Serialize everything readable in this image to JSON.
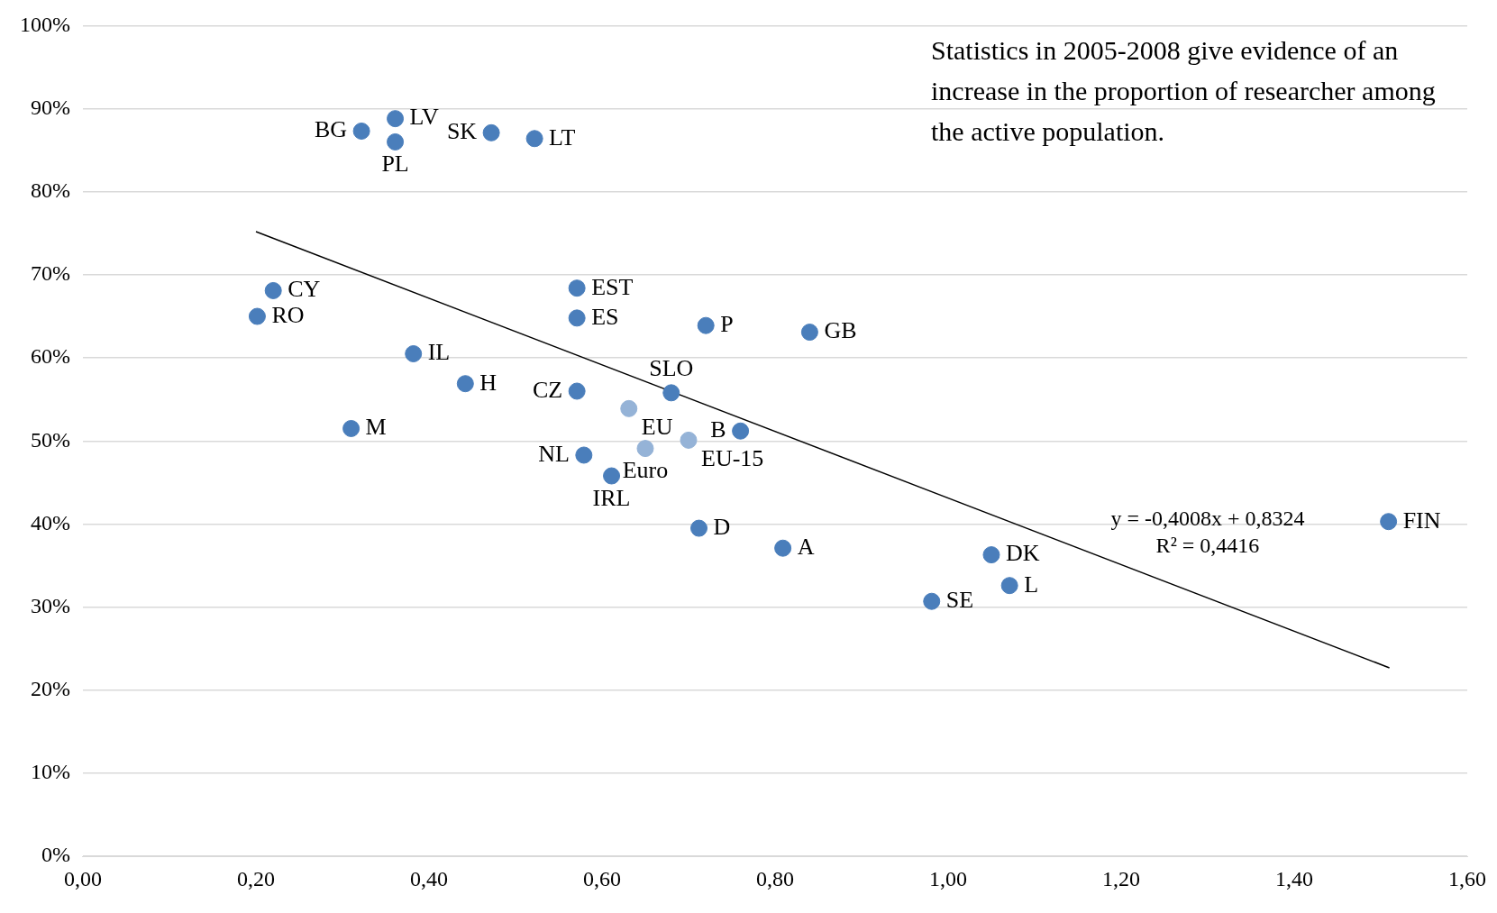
{
  "chart_data": {
    "type": "scatter",
    "series": [
      {
        "color": "#4a7ebb",
        "marker": "circle",
        "x": [
          0.322,
          0.361,
          0.361,
          0.472,
          0.522,
          0.22,
          0.2015,
          0.382,
          0.442,
          0.31,
          0.571,
          0.571,
          0.72,
          0.84,
          0.571,
          0.68,
          0.76,
          0.579,
          0.611,
          0.712,
          0.809,
          1.05,
          1.071,
          0.981,
          1.509
        ],
        "values": [
          87.3,
          88.8,
          86.0,
          87.1,
          86.4,
          68.1,
          65.0,
          60.5,
          56.9,
          51.5,
          68.4,
          64.8,
          63.9,
          63.1,
          56.0,
          55.8,
          51.2,
          48.3,
          45.8,
          39.5,
          37.1,
          36.3,
          32.6,
          30.7,
          40.3
        ]
      },
      {
        "color": "#95b3d7",
        "marker": "circle",
        "x": [
          0.631,
          0.65,
          0.7
        ],
        "values": [
          53.9,
          49.1,
          50.1
        ]
      },
      {
        "type": "line",
        "color": "#000000",
        "marker": "none",
        "x": [
          0.2,
          1.51
        ],
        "values": [
          75.2,
          22.7
        ]
      }
    ],
    "xlim": [
      0,
      1.6
    ],
    "xticks": [
      {
        "value": 0,
        "label": "0,00"
      },
      {
        "value": 0.2,
        "label": "0,20"
      },
      {
        "value": 0.4,
        "label": "0,40"
      },
      {
        "value": 0.6,
        "label": "0,60"
      },
      {
        "value": 0.8,
        "label": "0,80"
      },
      {
        "value": 1.0,
        "label": "1,00"
      },
      {
        "value": 1.2,
        "label": "1,20"
      },
      {
        "value": 1.4,
        "label": "1,40"
      },
      {
        "value": 1.6,
        "label": "1,60"
      }
    ],
    "ylim": [
      0,
      100
    ],
    "yticks": [
      {
        "value": 0,
        "label": "0%"
      },
      {
        "value": 10,
        "label": "10%"
      },
      {
        "value": 20,
        "label": "20%"
      },
      {
        "value": 30,
        "label": "30%"
      },
      {
        "value": 40,
        "label": "40%"
      },
      {
        "value": 50,
        "label": "50%"
      },
      {
        "value": 60,
        "label": "60%"
      },
      {
        "value": 70,
        "label": "70%"
      },
      {
        "value": 80,
        "label": "80%"
      },
      {
        "value": 90,
        "label": "90%"
      },
      {
        "value": 100,
        "label": "100%"
      }
    ],
    "grid": "y",
    "legend": false,
    "annotations": [
      "Statistics in 2005-2008 give evidence of an increase in the proportion of researcher among the active population.",
      "y = -0,4008x + 0,8324",
      "R² = 0,4416",
      {
        "text": "BG",
        "x": 0.322,
        "y": 87.3
      },
      {
        "text": "LV",
        "x": 0.361,
        "y": 88.8
      },
      {
        "text": "PL",
        "x": 0.361,
        "y": 86.0
      },
      {
        "text": "SK",
        "x": 0.472,
        "y": 87.1
      },
      {
        "text": "LT",
        "x": 0.522,
        "y": 86.4
      },
      {
        "text": "CY",
        "x": 0.22,
        "y": 68.1
      },
      {
        "text": "RO",
        "x": 0.2015,
        "y": 65.0
      },
      {
        "text": "IL",
        "x": 0.382,
        "y": 60.5
      },
      {
        "text": "H",
        "x": 0.442,
        "y": 56.9
      },
      {
        "text": "M",
        "x": 0.31,
        "y": 51.5
      },
      {
        "text": "EST",
        "x": 0.571,
        "y": 68.4
      },
      {
        "text": "ES",
        "x": 0.571,
        "y": 64.8
      },
      {
        "text": "P",
        "x": 0.72,
        "y": 63.9
      },
      {
        "text": "GB",
        "x": 0.84,
        "y": 63.1
      },
      {
        "text": "CZ",
        "x": 0.571,
        "y": 56.0
      },
      {
        "text": "SLO",
        "x": 0.68,
        "y": 55.8
      },
      {
        "text": "EU",
        "x": 0.631,
        "y": 53.9
      },
      {
        "text": "Euro",
        "x": 0.65,
        "y": 49.1
      },
      {
        "text": "EU-15",
        "x": 0.7,
        "y": 50.1
      },
      {
        "text": "B",
        "x": 0.76,
        "y": 51.2
      },
      {
        "text": "NL",
        "x": 0.579,
        "y": 48.3
      },
      {
        "text": "IRL",
        "x": 0.611,
        "y": 45.8
      },
      {
        "text": "D",
        "x": 0.712,
        "y": 39.5
      },
      {
        "text": "A",
        "x": 0.809,
        "y": 37.1
      },
      {
        "text": "DK",
        "x": 1.05,
        "y": 36.3
      },
      {
        "text": "L",
        "x": 1.071,
        "y": 32.6
      },
      {
        "text": "SE",
        "x": 0.981,
        "y": 30.7
      },
      {
        "text": "FIN",
        "x": 1.509,
        "y": 40.3
      }
    ]
  }
}
